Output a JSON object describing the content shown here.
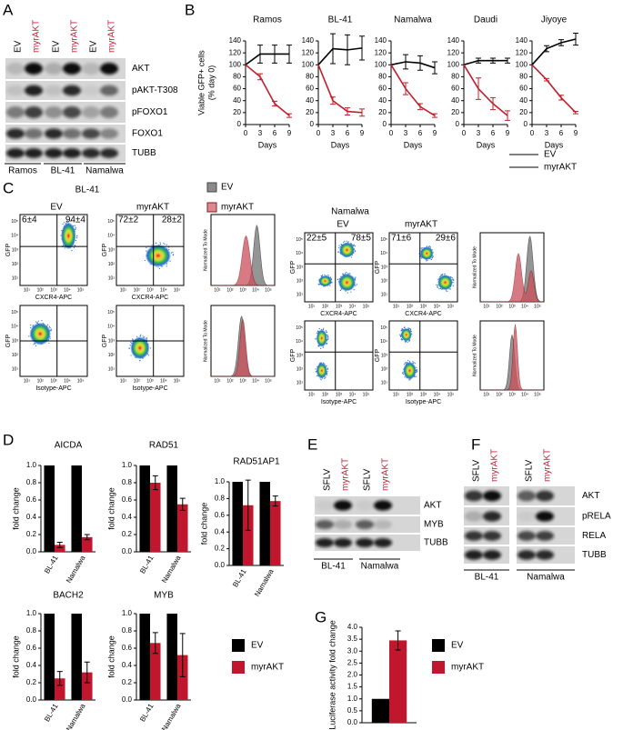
{
  "panel_labels": [
    "A",
    "B",
    "C",
    "D",
    "E",
    "F",
    "G"
  ],
  "blot_a": {
    "lanes": [
      "EV",
      "myrAKT",
      "EV",
      "myrAKT",
      "EV",
      "myrAKT"
    ],
    "proteins": [
      "AKT",
      "pAKT-T308",
      "pFOXO1",
      "FOXO1",
      "TUBB"
    ],
    "cell_lines": [
      "Ramos",
      "BL-41",
      "Namalwa"
    ]
  },
  "flow": {
    "legend": [
      "EV",
      "myrAKT"
    ],
    "groups": [
      {
        "cell_line": "BL-41",
        "conditions": [
          "EV",
          "myrAKT"
        ],
        "quadrants": [
          [
            "6±4",
            "94±4"
          ],
          [
            "72±2",
            "28±2"
          ]
        ]
      },
      {
        "cell_line": "Namalwa",
        "conditions": [
          "EV",
          "myrAKT"
        ],
        "quadrants": [
          [
            "22±5",
            "78±5"
          ],
          [
            "71±6",
            "29±6"
          ]
        ]
      }
    ],
    "x_labels": [
      "CXCR4-APC",
      "Isotype-APC"
    ],
    "y_label_scatter": "GFP",
    "y_label_hist": "Normalized To Mode",
    "axis_ticks": [
      "10¹",
      "10²",
      "10³",
      "10⁴",
      "10⁵"
    ]
  },
  "blot_e": {
    "lanes": [
      "SFLV",
      "myrAKT",
      "SFLV",
      "myrAKT"
    ],
    "proteins": [
      "AKT",
      "MYB",
      "TUBB"
    ],
    "cell_lines": [
      "BL-41",
      "Namalwa"
    ]
  },
  "blot_f": {
    "lanes": [
      "SFLV",
      "myrAKT",
      "SFLV",
      "myrAKT"
    ],
    "proteins": [
      "AKT",
      "pRELA",
      "RELA",
      "TUBB"
    ],
    "cell_lines": [
      "BL-41",
      "Namalwa"
    ]
  },
  "chart_data": [
    {
      "type": "line",
      "title": "Ramos",
      "y_label": "Viable GFP+ cells",
      "y_label_sub": "(% day 0)",
      "x_label": "Days",
      "x": [
        0,
        3,
        6,
        9
      ],
      "xlim": [
        0,
        9
      ],
      "xticks": [
        0,
        3,
        6,
        9
      ],
      "ylim": [
        0,
        140
      ],
      "yticks": [
        0,
        20,
        40,
        60,
        80,
        100,
        120,
        140
      ],
      "series": [
        {
          "name": "EV",
          "color": "#000000",
          "values": [
            100,
            118,
            118,
            118
          ],
          "errors": [
            null,
            15,
            15,
            15
          ]
        },
        {
          "name": "myrAKT",
          "color": "#c0202a",
          "values": [
            100,
            80,
            35,
            15
          ],
          "errors": [
            null,
            5,
            4,
            3
          ]
        }
      ]
    },
    {
      "type": "line",
      "title": "BL-41",
      "x_label": "Days",
      "x": [
        0,
        3,
        6,
        9
      ],
      "xlim": [
        0,
        9
      ],
      "xticks": [
        0,
        3,
        6,
        9
      ],
      "ylim": [
        0,
        140
      ],
      "yticks": [
        0,
        20,
        40,
        60,
        80,
        100,
        120,
        140
      ],
      "series": [
        {
          "name": "EV",
          "color": "#000000",
          "values": [
            100,
            127,
            125,
            128
          ],
          "errors": [
            null,
            25,
            25,
            20
          ]
        },
        {
          "name": "myrAKT",
          "color": "#c0202a",
          "values": [
            100,
            40,
            22,
            20
          ],
          "errors": [
            null,
            6,
            6,
            6
          ]
        }
      ]
    },
    {
      "type": "line",
      "title": "Namalwa",
      "x_label": "Days",
      "x": [
        0,
        3,
        6,
        9
      ],
      "xlim": [
        0,
        9
      ],
      "xticks": [
        0,
        3,
        6,
        9
      ],
      "ylim": [
        0,
        140
      ],
      "yticks": [
        0,
        20,
        40,
        60,
        80,
        100,
        120,
        140
      ],
      "series": [
        {
          "name": "EV",
          "color": "#000000",
          "values": [
            100,
            105,
            103,
            95
          ],
          "errors": [
            null,
            12,
            12,
            10
          ]
        },
        {
          "name": "myrAKT",
          "color": "#c0202a",
          "values": [
            100,
            60,
            30,
            15
          ],
          "errors": [
            null,
            10,
            5,
            3
          ]
        }
      ]
    },
    {
      "type": "line",
      "title": "Daudi",
      "x_label": "Days",
      "x": [
        0,
        3,
        6,
        9
      ],
      "xlim": [
        0,
        9
      ],
      "xticks": [
        0,
        3,
        6,
        9
      ],
      "ylim": [
        0,
        140
      ],
      "yticks": [
        0,
        20,
        40,
        60,
        80,
        100,
        120,
        140
      ],
      "series": [
        {
          "name": "EV",
          "color": "#000000",
          "values": [
            100,
            107,
            107,
            107
          ],
          "errors": [
            null,
            4,
            4,
            4
          ]
        },
        {
          "name": "myrAKT",
          "color": "#c0202a",
          "values": [
            100,
            60,
            35,
            15
          ],
          "errors": [
            null,
            18,
            10,
            8
          ]
        }
      ]
    },
    {
      "type": "line",
      "title": "Jiyoye",
      "x_label": "Days",
      "x": [
        0,
        3,
        6,
        9
      ],
      "xlim": [
        0,
        9
      ],
      "xticks": [
        0,
        3,
        6,
        9
      ],
      "ylim": [
        0,
        140
      ],
      "yticks": [
        0,
        20,
        40,
        60,
        80,
        100,
        120,
        140
      ],
      "series": [
        {
          "name": "EV",
          "color": "#000000",
          "values": [
            100,
            127,
            137,
            143
          ],
          "errors": [
            null,
            5,
            5,
            10
          ]
        },
        {
          "name": "myrAKT",
          "color": "#c0202a",
          "values": [
            100,
            75,
            45,
            20
          ],
          "errors": [
            null,
            2,
            4,
            2
          ]
        }
      ]
    },
    {
      "type": "bar",
      "title": "AICDA",
      "y_label": "fold change",
      "categories": [
        "BL-41",
        "Namalwa"
      ],
      "ylim": [
        0,
        1
      ],
      "yticks": [
        {
          "value": 0,
          "label": "0.0"
        },
        0.2,
        0.4,
        0.6,
        0.8,
        {
          "value": 1,
          "label": "1.0"
        }
      ],
      "series": [
        {
          "name": "EV",
          "color": "#000000",
          "values": [
            1,
            1
          ]
        },
        {
          "name": "myrAKT",
          "color": "#c0172f",
          "values": [
            0.08,
            0.17
          ],
          "errors": [
            0.03,
            0.03
          ]
        }
      ]
    },
    {
      "type": "bar",
      "title": "RAD51",
      "y_label": "fold change",
      "categories": [
        "BL-41",
        "Namalwa"
      ],
      "ylim": [
        0,
        1
      ],
      "yticks": [
        {
          "value": 0,
          "label": "0.0"
        },
        0.2,
        0.4,
        0.6,
        0.8,
        {
          "value": 1,
          "label": "1.0"
        }
      ],
      "series": [
        {
          "name": "EV",
          "color": "#000000",
          "values": [
            1,
            1
          ]
        },
        {
          "name": "myrAKT",
          "color": "#c0172f",
          "values": [
            0.8,
            0.55
          ],
          "errors": [
            0.08,
            0.07
          ]
        }
      ]
    },
    {
      "type": "bar",
      "title": "RAD51AP1",
      "y_label": "fold change",
      "categories": [
        "BL-41",
        "Namalwa"
      ],
      "ylim": [
        0,
        1
      ],
      "yticks": [
        {
          "value": 0,
          "label": "0.0"
        },
        0.2,
        0.4,
        0.6,
        0.8,
        {
          "value": 1,
          "label": "1.0"
        }
      ],
      "series": [
        {
          "name": "EV",
          "color": "#000000",
          "values": [
            1,
            1
          ]
        },
        {
          "name": "myrAKT",
          "color": "#c0172f",
          "values": [
            0.72,
            0.77
          ],
          "errors": [
            0.3,
            0.06
          ]
        }
      ]
    },
    {
      "type": "bar",
      "title": "BACH2",
      "y_label": "fold change",
      "categories": [
        "BL-41",
        "Namalwa"
      ],
      "ylim": [
        0,
        1
      ],
      "yticks": [
        {
          "value": 0,
          "label": "0.0"
        },
        0.2,
        0.4,
        0.6,
        0.8,
        {
          "value": 1,
          "label": "1.0"
        }
      ],
      "series": [
        {
          "name": "EV",
          "color": "#000000",
          "values": [
            1,
            1
          ]
        },
        {
          "name": "myrAKT",
          "color": "#c0172f",
          "values": [
            0.25,
            0.32
          ],
          "errors": [
            0.08,
            0.12
          ]
        }
      ]
    },
    {
      "type": "bar",
      "title": "MYB",
      "y_label": "fold change",
      "categories": [
        "BL-41",
        "Namalwa"
      ],
      "ylim": [
        0,
        1
      ],
      "yticks": [
        {
          "value": 0,
          "label": "0.0"
        },
        0.2,
        0.4,
        0.6,
        0.8,
        {
          "value": 1,
          "label": "1.0"
        }
      ],
      "series": [
        {
          "name": "EV",
          "color": "#000000",
          "values": [
            1,
            1
          ]
        },
        {
          "name": "myrAKT",
          "color": "#c0172f",
          "values": [
            0.66,
            0.52
          ],
          "errors": [
            0.12,
            0.25
          ]
        }
      ]
    },
    {
      "type": "bar",
      "y_label": "Luciferase activity fold change",
      "ylim": [
        0,
        4
      ],
      "yticks": [
        {
          "value": 0,
          "label": "0.0"
        },
        0.5,
        {
          "value": 1,
          "label": "1.0"
        },
        1.5,
        {
          "value": 2,
          "label": "2.0"
        },
        2.5,
        {
          "value": 3,
          "label": "3.0"
        },
        3.5,
        {
          "value": 4,
          "label": "4.0"
        }
      ],
      "series": [
        {
          "name": "EV",
          "color": "#000000",
          "values": [
            1
          ]
        },
        {
          "name": "myrAKT",
          "color": "#c0172f",
          "values": [
            3.45
          ],
          "errors": [
            0.4
          ]
        }
      ]
    }
  ]
}
